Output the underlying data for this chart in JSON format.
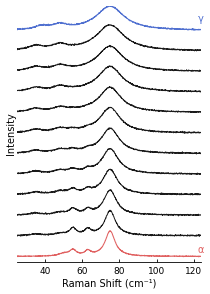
{
  "x_min": 25,
  "x_max": 125,
  "xlabel": "Raman Shift (cm⁻¹)",
  "ylabel": "Intensity",
  "xticks": [
    40,
    60,
    80,
    100,
    120
  ],
  "n_black_spectra": 10,
  "alpha_color": "#e06060",
  "gamma_color": "#5070d0",
  "black_color": "#1a1a1a",
  "background_color": "#ffffff",
  "gamma_label": "γ",
  "alpha_label": "α",
  "figwidth": 2.1,
  "figheight": 2.94,
  "dpi": 100
}
